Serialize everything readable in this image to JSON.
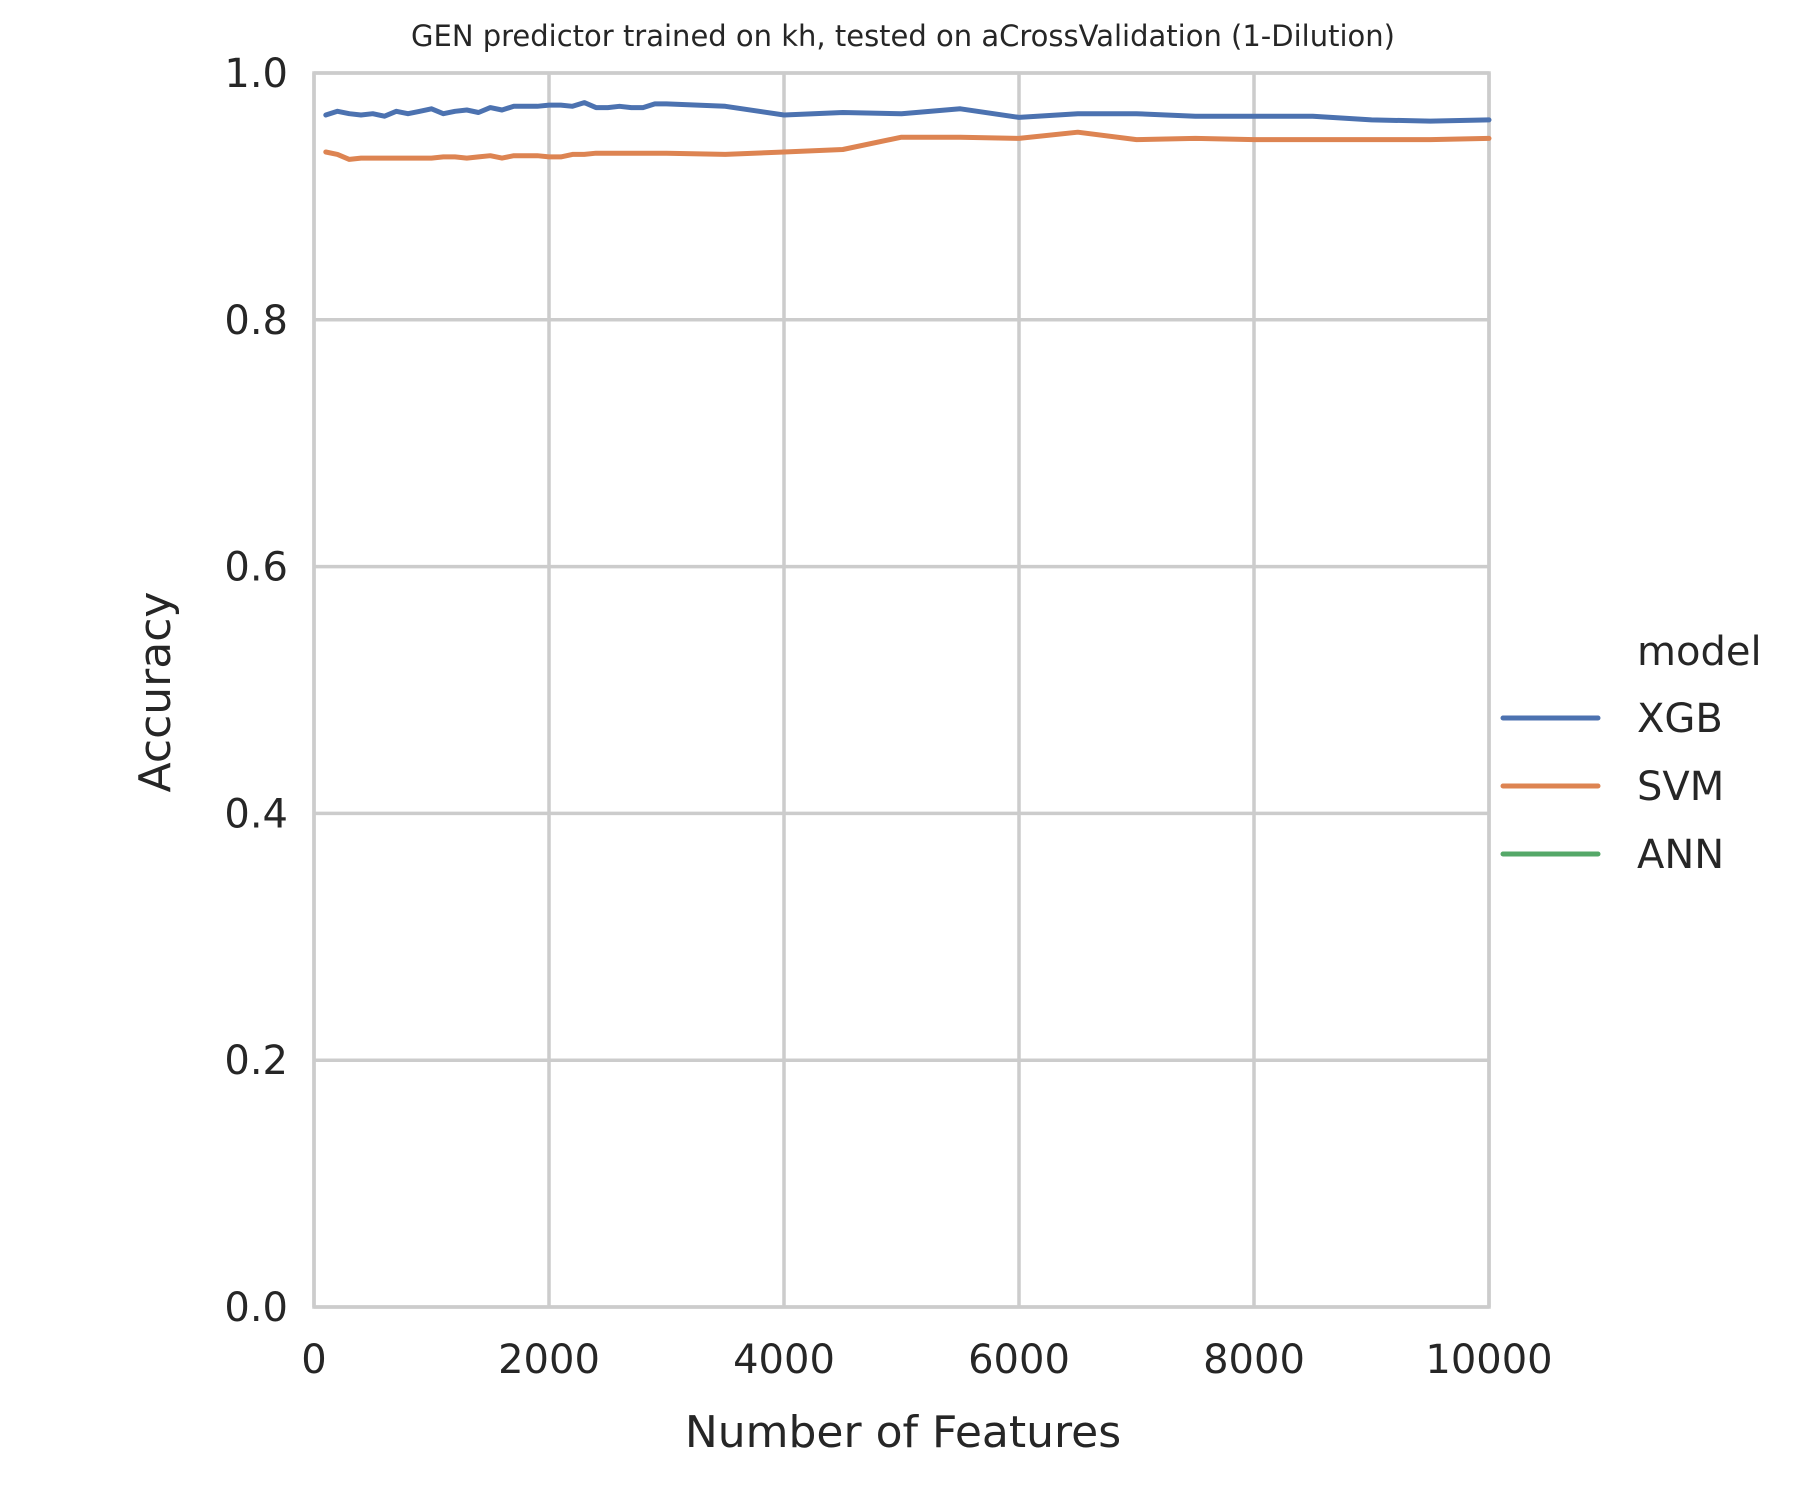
{
  "chart_data": {
    "type": "line",
    "title": "GEN predictor trained on kh, tested on aCrossValidation (1-Dilution)",
    "xlabel": "Number of Features",
    "ylabel": "Accuracy",
    "xlim": [
      0,
      10000
    ],
    "ylim": [
      0.0,
      1.0
    ],
    "xticks": [
      0,
      2000,
      4000,
      6000,
      8000,
      10000
    ],
    "xtick_labels": [
      "0",
      "2000",
      "4000",
      "6000",
      "8000",
      "10000"
    ],
    "yticks": [
      0.0,
      0.2,
      0.4,
      0.6,
      0.8,
      1.0
    ],
    "ytick_labels": [
      "0.0",
      "0.2",
      "0.4",
      "0.6",
      "0.8",
      "1.0"
    ],
    "grid": true,
    "legend": {
      "title": "model",
      "placement": "right",
      "entries": [
        "XGB",
        "SVM",
        "ANN"
      ]
    },
    "series": [
      {
        "name": "XGB",
        "color": "#4c72b0",
        "x": [
          100,
          200,
          300,
          400,
          500,
          600,
          700,
          800,
          900,
          1000,
          1100,
          1200,
          1300,
          1400,
          1500,
          1600,
          1700,
          1800,
          1900,
          2000,
          2100,
          2200,
          2300,
          2400,
          2500,
          2600,
          2700,
          2800,
          2900,
          3000,
          3500,
          4000,
          4500,
          5000,
          5500,
          6000,
          6500,
          7000,
          7500,
          8000,
          8500,
          9000,
          9500,
          10000
        ],
        "values": [
          0.966,
          0.969,
          0.967,
          0.966,
          0.967,
          0.965,
          0.969,
          0.967,
          0.969,
          0.971,
          0.967,
          0.969,
          0.97,
          0.968,
          0.972,
          0.97,
          0.973,
          0.973,
          0.973,
          0.974,
          0.974,
          0.973,
          0.976,
          0.972,
          0.972,
          0.973,
          0.972,
          0.972,
          0.975,
          0.975,
          0.973,
          0.966,
          0.968,
          0.967,
          0.971,
          0.964,
          0.967,
          0.967,
          0.965,
          0.965,
          0.965,
          0.962,
          0.961,
          0.962
        ]
      },
      {
        "name": "SVM",
        "color": "#dd8452",
        "x": [
          100,
          200,
          300,
          400,
          500,
          600,
          700,
          800,
          900,
          1000,
          1100,
          1200,
          1300,
          1400,
          1500,
          1600,
          1700,
          1800,
          1900,
          2000,
          2100,
          2200,
          2300,
          2400,
          2500,
          2600,
          2700,
          2800,
          2900,
          3000,
          3500,
          4000,
          4500,
          5000,
          5500,
          6000,
          6500,
          7000,
          7500,
          8000,
          8500,
          9000,
          9500,
          10000
        ],
        "values": [
          0.936,
          0.934,
          0.93,
          0.931,
          0.931,
          0.931,
          0.931,
          0.931,
          0.931,
          0.931,
          0.932,
          0.932,
          0.931,
          0.932,
          0.933,
          0.931,
          0.933,
          0.933,
          0.933,
          0.932,
          0.932,
          0.934,
          0.934,
          0.935,
          0.935,
          0.935,
          0.935,
          0.935,
          0.935,
          0.935,
          0.934,
          0.936,
          0.938,
          0.948,
          0.948,
          0.947,
          0.952,
          0.946,
          0.947,
          0.946,
          0.946,
          0.946,
          0.946,
          0.947
        ]
      },
      {
        "name": "ANN",
        "color": "#55a868",
        "x": [],
        "values": []
      }
    ]
  }
}
